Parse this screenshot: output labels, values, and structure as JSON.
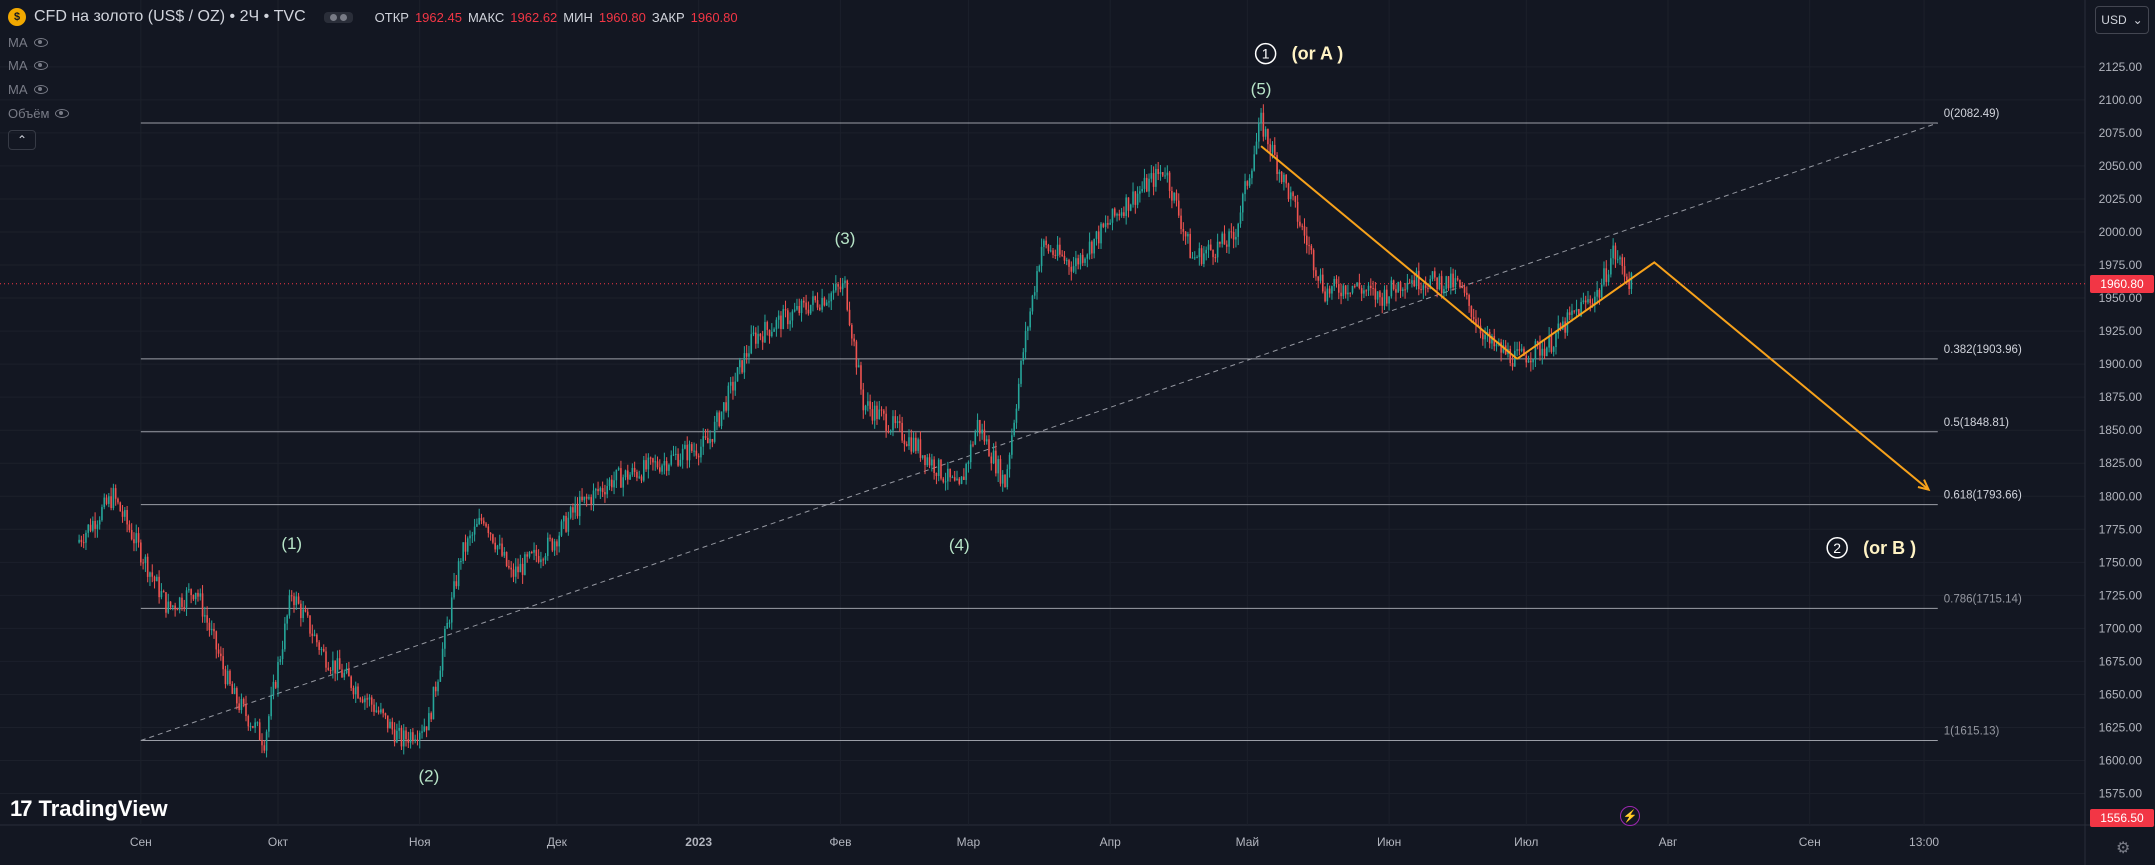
{
  "header": {
    "symbol_icon": "gold-coin-icon",
    "title": "CFD на золото (US$ / OZ) • 2Ч • TVC",
    "ohlc": [
      {
        "k": "ОТКР",
        "v": "1962.45"
      },
      {
        "k": "МАКС",
        "v": "1962.62"
      },
      {
        "k": "МИН",
        "v": "1960.80"
      },
      {
        "k": "ЗАКР",
        "v": "1960.80"
      }
    ],
    "indicators": [
      "MA",
      "MA",
      "MA",
      "Объём"
    ],
    "collapse_icon": "chevron-up-icon",
    "currency": "USD"
  },
  "branding": {
    "logo_text": "TradingView"
  },
  "colors": {
    "background": "#131722",
    "up": "#26a69a",
    "down": "#ef5350",
    "fib": "#c9ccd4",
    "forecast": "#f7a21b",
    "wave_labels": "#b7e4c7",
    "price_tag": "#f23645"
  },
  "price_tags": {
    "current": "1960.80",
    "low_scale": "1556.50"
  },
  "chart_data": {
    "type": "candlestick",
    "title": "CFD на золото (US$ / OZ) • 2Ч • TVC",
    "ylim": [
      1556.5,
      2140
    ],
    "y_ticks": [
      1575,
      1600,
      1625,
      1650,
      1675,
      1700,
      1725,
      1750,
      1775,
      1800,
      1825,
      1850,
      1875,
      1900,
      1925,
      1950,
      1975,
      2000,
      2025,
      2050,
      2075,
      2100,
      2125
    ],
    "x_ticks": [
      "Сен",
      "Окт",
      "Ноя",
      "Дек",
      "2023",
      "Фев",
      "Мар",
      "Апр",
      "Май",
      "Июн",
      "Июл",
      "Авг",
      "Сен",
      "13:00"
    ],
    "price_path": [
      [
        "2022-08-18",
        1765
      ],
      [
        "2022-08-26",
        1800
      ],
      [
        "2022-09-07",
        1715
      ],
      [
        "2022-09-13",
        1730
      ],
      [
        "2022-09-21",
        1650
      ],
      [
        "2022-09-28",
        1615
      ],
      [
        "2022-10-04",
        1727
      ],
      [
        "2022-10-11",
        1680
      ],
      [
        "2022-10-21",
        1645
      ],
      [
        "2022-10-28",
        1615
      ],
      [
        "2022-11-03",
        1630
      ],
      [
        "2022-11-10",
        1755
      ],
      [
        "2022-11-15",
        1785
      ],
      [
        "2022-11-21",
        1740
      ],
      [
        "2022-11-30",
        1765
      ],
      [
        "2022-12-05",
        1790
      ],
      [
        "2022-12-13",
        1812
      ],
      [
        "2022-12-20",
        1820
      ],
      [
        "2023-01-03",
        1840
      ],
      [
        "2023-01-13",
        1920
      ],
      [
        "2023-01-20",
        1935
      ],
      [
        "2023-02-02",
        1959
      ],
      [
        "2023-02-06",
        1870
      ],
      [
        "2023-02-10",
        1860
      ],
      [
        "2023-02-17",
        1840
      ],
      [
        "2023-02-27",
        1804
      ],
      [
        "2023-03-03",
        1855
      ],
      [
        "2023-03-09",
        1810
      ],
      [
        "2023-03-13",
        1910
      ],
      [
        "2023-03-17",
        1990
      ],
      [
        "2023-03-24",
        1975
      ],
      [
        "2023-04-04",
        2020
      ],
      [
        "2023-04-13",
        2048
      ],
      [
        "2023-04-19",
        1980
      ],
      [
        "2023-04-28",
        1995
      ],
      [
        "2023-05-04",
        2082.49
      ],
      [
        "2023-05-10",
        2030
      ],
      [
        "2023-05-18",
        1955
      ],
      [
        "2023-05-24",
        1960
      ],
      [
        "2023-05-30",
        1950
      ],
      [
        "2023-06-05",
        1965
      ],
      [
        "2023-06-16",
        1960
      ],
      [
        "2023-06-23",
        1915
      ],
      [
        "2023-06-29",
        1903.96
      ],
      [
        "2023-07-06",
        1915
      ],
      [
        "2023-07-12",
        1940
      ],
      [
        "2023-07-17",
        1955
      ],
      [
        "2023-07-20",
        1985
      ],
      [
        "2023-07-24",
        1960.8
      ]
    ],
    "fibonacci": [
      {
        "level": "0",
        "price": 2082.49,
        "label": "0(2082.49)"
      },
      {
        "level": "0.382",
        "price": 1903.96,
        "label": "0.382(1903.96)"
      },
      {
        "level": "0.5",
        "price": 1848.81,
        "label": "0.5(1848.81)"
      },
      {
        "level": "0.618",
        "price": 1793.66,
        "label": "0.618(1793.66)"
      },
      {
        "level": "0.786",
        "price": 1715.14,
        "label": "0.786(1715.14)"
      },
      {
        "level": "1",
        "price": 1615.13,
        "label": "1(1615.13)"
      }
    ],
    "current_price": 1960.8,
    "wave_labels": [
      {
        "text": "(1)",
        "date": "2022-10-04",
        "price": 1760
      },
      {
        "text": "(2)",
        "date": "2022-11-03",
        "price": 1584
      },
      {
        "text": "(3)",
        "date": "2023-02-02",
        "price": 1991
      },
      {
        "text": "(4)",
        "date": "2023-02-27",
        "price": 1759
      },
      {
        "text": "(5)",
        "date": "2023-05-04",
        "price": 2104
      }
    ],
    "circle_labels": [
      {
        "num": "1",
        "text": "(or A )",
        "date": "2023-05-05",
        "price": 2135
      },
      {
        "num": "2",
        "text": "(or B )",
        "date": "2023-09-07",
        "price": 1761
      }
    ],
    "forecast_lines": [
      [
        [
          "2023-05-04",
          2065
        ],
        [
          "2023-06-29",
          1903.96
        ]
      ],
      [
        [
          "2023-06-29",
          1903.96
        ],
        [
          "2023-07-29",
          1977
        ],
        [
          "2023-09-27",
          1805
        ]
      ]
    ],
    "trendline": [
      [
        "2022-09-01",
        1615.13
      ],
      [
        "2023-09-29",
        2082.49
      ]
    ]
  }
}
